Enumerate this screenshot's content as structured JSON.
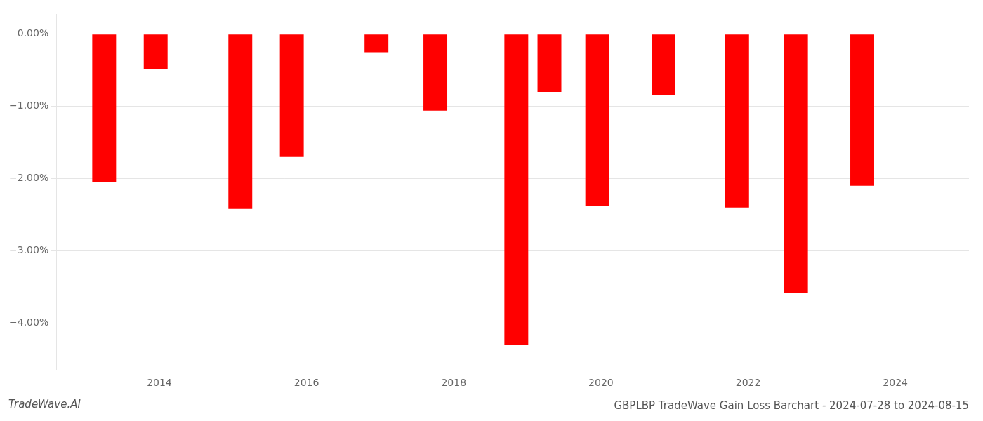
{
  "chart_data": {
    "type": "bar",
    "title": "GBPLBP TradeWave Gain Loss Barchart - 2024-07-28 to 2024-08-15",
    "annotations": [
      "TradeWave.AI"
    ],
    "x": [
      2013.25,
      2013.95,
      2015.1,
      2015.8,
      2016.95,
      2017.75,
      2018.85,
      2019.3,
      2019.95,
      2020.85,
      2021.85,
      2022.65,
      2023.55
    ],
    "values": [
      -2.05,
      -0.48,
      -2.42,
      -1.7,
      -0.25,
      -1.06,
      -4.3,
      -0.8,
      -2.38,
      -0.84,
      -2.4,
      -3.58,
      -2.1
    ],
    "color": "#ff0000",
    "xlim": [
      2012.6,
      2025.0
    ],
    "xticks": [
      2014,
      2016,
      2018,
      2020,
      2022,
      2024
    ],
    "ylim": [
      -4.65,
      0.28
    ],
    "yticks": [
      {
        "value": 0.0,
        "label": "0.00%"
      },
      {
        "value": -1.0,
        "label": "−1.00%"
      },
      {
        "value": -2.0,
        "label": "−2.00%"
      },
      {
        "value": -3.0,
        "label": "−3.00%"
      },
      {
        "value": -4.0,
        "label": "−4.00%"
      }
    ],
    "grid": true
  }
}
